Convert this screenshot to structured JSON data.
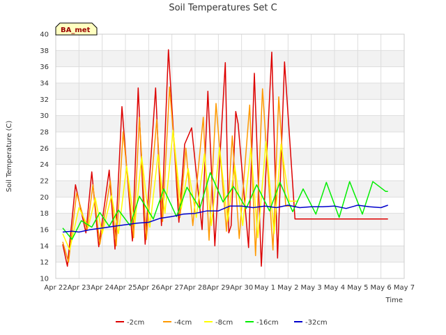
{
  "chart_data": {
    "type": "line",
    "title": "Soil Temperatures Set C",
    "xlabel": "Time",
    "ylabel": "Soil Temperature (C)",
    "station_label": "BA_met",
    "ylim": [
      10,
      40
    ],
    "yticks": [
      10,
      12,
      14,
      16,
      18,
      20,
      22,
      24,
      26,
      28,
      30,
      32,
      34,
      36,
      38,
      40
    ],
    "xlim": [
      0,
      15
    ],
    "x_unit": "days from Apr 22",
    "x_ticks": [
      {
        "x": 0,
        "label": "Apr 22"
      },
      {
        "x": 1,
        "label": "Apr 23"
      },
      {
        "x": 2,
        "label": "Apr 24"
      },
      {
        "x": 3,
        "label": "Apr 25"
      },
      {
        "x": 4,
        "label": "Apr 26"
      },
      {
        "x": 5,
        "label": "Apr 27"
      },
      {
        "x": 6,
        "label": "Apr 28"
      },
      {
        "x": 7,
        "label": "Apr 29"
      },
      {
        "x": 8,
        "label": "Apr 30"
      },
      {
        "x": 9,
        "label": "May 1"
      },
      {
        "x": 10,
        "label": "May 2"
      },
      {
        "x": 11,
        "label": "May 3"
      },
      {
        "x": 12,
        "label": "May 4"
      },
      {
        "x": 13,
        "label": "May 5"
      },
      {
        "x": 14,
        "label": "May 6"
      },
      {
        "x": 15,
        "label": "May 7"
      }
    ],
    "grid": true,
    "legend_position": "bottom",
    "series": [
      {
        "name": "-2cm",
        "color": "#dd0000",
        "x": [
          0.3,
          0.5,
          0.85,
          1.3,
          1.55,
          1.85,
          2.3,
          2.55,
          2.85,
          3.3,
          3.55,
          3.85,
          4.3,
          4.55,
          4.85,
          5.3,
          5.55,
          5.85,
          6.3,
          6.55,
          6.85,
          7.3,
          7.45,
          7.55,
          7.75,
          7.85,
          8.3,
          8.55,
          8.85,
          9.3,
          9.55,
          9.85,
          10.3,
          10.5,
          10.55,
          10.6,
          10.85,
          11.3,
          11.55,
          11.85,
          12.3,
          12.55,
          12.85,
          13.3,
          13.55,
          13.85,
          14.3
        ],
        "y": [
          14.2,
          11.5,
          21.5,
          15.6,
          23.1,
          13.9,
          23.3,
          13.6,
          31.1,
          14.6,
          33.4,
          14.2,
          33.4,
          16.5,
          38.1,
          16.9,
          26.5,
          28.5,
          16.0,
          33.0,
          14.0,
          36.5,
          15.6,
          16.5,
          30.5,
          29.0,
          13.8,
          35.2,
          11.5,
          37.8,
          12.5,
          36.6,
          17.3,
          17.3,
          17.3,
          17.3,
          17.3,
          17.3,
          17.3,
          17.3,
          17.3,
          17.3,
          17.3,
          17.3,
          17.3,
          17.3,
          17.3
        ]
      },
      {
        "name": "-4cm",
        "color": "#ff9900",
        "x": [
          0.3,
          0.55,
          0.9,
          1.35,
          1.6,
          1.9,
          2.35,
          2.6,
          2.9,
          3.35,
          3.6,
          3.9,
          4.35,
          4.6,
          4.9,
          5.35,
          5.6,
          5.9,
          6.35,
          6.6,
          6.9,
          7.35,
          7.6,
          7.9,
          8.35,
          8.6,
          8.9,
          9.35,
          9.6,
          9.9,
          10.35
        ],
        "y": [
          14.5,
          12.0,
          20.5,
          15.9,
          21.5,
          14.2,
          22.0,
          14.0,
          28.0,
          15.0,
          29.8,
          14.8,
          29.5,
          17.0,
          33.5,
          17.5,
          26.0,
          16.5,
          29.8,
          14.7,
          31.5,
          15.8,
          27.5,
          14.9,
          31.3,
          12.8,
          33.3,
          13.5,
          32.3,
          18.9,
          18.9
        ]
      },
      {
        "name": "-8cm",
        "color": "#ffff00",
        "x": [
          0.3,
          0.6,
          1.0,
          1.4,
          1.7,
          2.0,
          2.4,
          2.7,
          3.05,
          3.4,
          3.7,
          4.05,
          4.4,
          4.7,
          5.05,
          5.4,
          5.7,
          6.05,
          6.4,
          6.7,
          7.05,
          7.4,
          7.7,
          8.05,
          8.4,
          8.7,
          9.05,
          9.4,
          9.7,
          10.05,
          10.4
        ],
        "y": [
          15.5,
          13.5,
          18.7,
          16.3,
          19.9,
          15.5,
          20.2,
          15.5,
          23.8,
          16.5,
          25.0,
          16.3,
          25.2,
          18.0,
          28.2,
          18.5,
          23.5,
          17.5,
          25.3,
          16.5,
          26.1,
          17.0,
          23.9,
          16.5,
          26.0,
          15.0,
          26.8,
          15.5,
          26.5,
          19.5,
          19.5
        ]
      },
      {
        "name": "-16cm",
        "color": "#00ee00",
        "x": [
          0.3,
          0.7,
          1.1,
          1.55,
          1.9,
          2.3,
          2.7,
          3.2,
          3.6,
          4.2,
          4.65,
          5.2,
          5.65,
          6.2,
          6.65,
          7.2,
          7.65,
          8.2,
          8.65,
          9.2,
          9.65,
          10.2,
          10.65,
          11.2,
          11.65,
          12.2,
          12.65,
          13.2,
          13.65,
          14.2,
          14.3
        ],
        "y": [
          16.2,
          14.8,
          17.1,
          16.3,
          18.1,
          16.4,
          18.4,
          16.5,
          20.1,
          17.3,
          21.0,
          17.6,
          21.2,
          18.6,
          23.0,
          19.4,
          21.3,
          18.6,
          21.5,
          18.3,
          21.8,
          18.2,
          21.0,
          17.9,
          21.8,
          17.5,
          21.9,
          17.9,
          21.9,
          20.7,
          20.7
        ]
      },
      {
        "name": "-32cm",
        "color": "#0000cc",
        "x": [
          0.3,
          0.7,
          1.0,
          1.5,
          2.0,
          2.5,
          3.0,
          3.5,
          4.0,
          4.5,
          5.0,
          5.5,
          6.0,
          6.5,
          7.0,
          7.5,
          8.0,
          8.5,
          9.0,
          9.5,
          10.0,
          10.5,
          11.0,
          11.5,
          12.0,
          12.5,
          13.0,
          13.5,
          14.0,
          14.3
        ],
        "y": [
          15.7,
          15.8,
          15.7,
          16.0,
          16.2,
          16.4,
          16.6,
          16.8,
          16.9,
          17.4,
          17.6,
          17.9,
          18.0,
          18.3,
          18.3,
          18.9,
          18.9,
          18.7,
          18.9,
          18.7,
          19.0,
          18.7,
          18.8,
          18.8,
          18.9,
          18.6,
          19.0,
          18.8,
          18.7,
          19.0
        ]
      }
    ]
  }
}
